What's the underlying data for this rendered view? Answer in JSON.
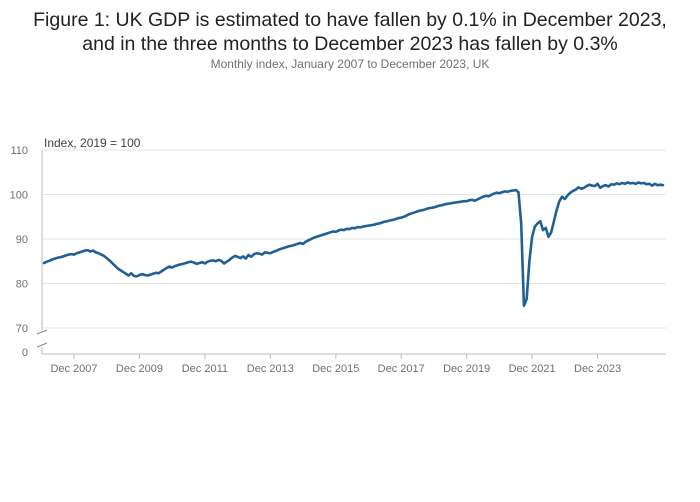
{
  "chart_data": {
    "type": "line",
    "title_line1": "Figure 1: UK GDP is estimated to have fallen by 0.1% in December 2023,",
    "title_line2": "and in the three months to December 2023 has fallen by 0.3%",
    "subtitle": "Monthly index, January 2007 to December 2023, UK",
    "ylabel": "Index, 2019 = 100",
    "ylim": [
      70,
      110
    ],
    "y_break": true,
    "y_ticks": [
      "110",
      "100",
      "90",
      "80",
      "70",
      "0"
    ],
    "x_ticks": [
      "Dec 2007",
      "Dec 2009",
      "Dec 2011",
      "Dec 2013",
      "Dec 2015",
      "Dec 2017",
      "Dec 2019",
      "Dec 2021",
      "Dec 2023"
    ],
    "grid": true,
    "color": "#206095",
    "series": [
      {
        "values": [
          84.6,
          84.9,
          85.1,
          85.4,
          85.6,
          85.8,
          85.9,
          86.1,
          86.3,
          86.5,
          86.6,
          86.5,
          86.8,
          87.0,
          87.2,
          87.4,
          87.5,
          87.2,
          87.4,
          87.0,
          86.8,
          86.5,
          86.2,
          85.7,
          85.2,
          84.6,
          84.0,
          83.4,
          83.0,
          82.6,
          82.2,
          81.8,
          82.3,
          81.7,
          81.6,
          81.9,
          82.1,
          81.9,
          81.8,
          82.0,
          82.2,
          82.4,
          82.3,
          82.7,
          83.1,
          83.5,
          83.8,
          83.6,
          83.9,
          84.1,
          84.3,
          84.4,
          84.6,
          84.8,
          84.9,
          84.7,
          84.4,
          84.6,
          84.8,
          84.5,
          84.9,
          85.1,
          85.2,
          85.0,
          85.3,
          85.1,
          84.5,
          84.9,
          85.3,
          85.8,
          86.2,
          86.0,
          85.7,
          86.1,
          85.6,
          86.4,
          86.0,
          86.6,
          86.8,
          86.7,
          86.5,
          87.0,
          86.9,
          86.8,
          87.1,
          87.3,
          87.6,
          87.8,
          88.0,
          88.2,
          88.4,
          88.5,
          88.7,
          88.9,
          89.1,
          88.9,
          89.4,
          89.7,
          90.0,
          90.3,
          90.5,
          90.7,
          90.9,
          91.1,
          91.3,
          91.5,
          91.7,
          91.6,
          91.9,
          92.1,
          92.0,
          92.3,
          92.2,
          92.5,
          92.4,
          92.7,
          92.6,
          92.8,
          92.9,
          93.0,
          93.1,
          93.2,
          93.4,
          93.5,
          93.7,
          93.9,
          94.0,
          94.2,
          94.3,
          94.5,
          94.7,
          94.8,
          95.0,
          95.3,
          95.6,
          95.8,
          96.0,
          96.2,
          96.4,
          96.5,
          96.7,
          96.9,
          97.0,
          97.1,
          97.3,
          97.5,
          97.6,
          97.8,
          97.9,
          98.0,
          98.1,
          98.2,
          98.3,
          98.4,
          98.5,
          98.5,
          98.7,
          98.8,
          98.6,
          98.9,
          99.2,
          99.5,
          99.7,
          99.6,
          99.9,
          100.2,
          100.4,
          100.3,
          100.5,
          100.7,
          100.6,
          100.8,
          100.9,
          101.0,
          100.5,
          93.5,
          75.0,
          76.5,
          85.0,
          90.5,
          92.8,
          93.5,
          94.0,
          92.0,
          92.5,
          90.5,
          91.5,
          94.0,
          96.5,
          98.5,
          99.5,
          99.0,
          99.8,
          100.4,
          100.8,
          101.1,
          101.6,
          101.3,
          101.5,
          101.9,
          102.2,
          102.0,
          101.9,
          102.4,
          101.5,
          101.9,
          102.1,
          101.8,
          102.3,
          102.2,
          102.5,
          102.3,
          102.6,
          102.4,
          102.7,
          102.5,
          102.6,
          102.4,
          102.7,
          102.5,
          102.6,
          102.3,
          102.4,
          102.0,
          102.4,
          102.1,
          102.2,
          102.1
        ]
      }
    ]
  }
}
